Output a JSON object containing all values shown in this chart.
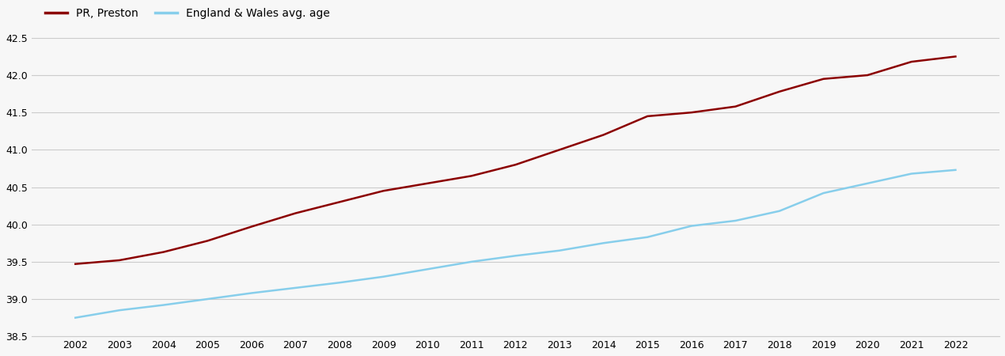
{
  "years": [
    2002,
    2003,
    2004,
    2005,
    2006,
    2007,
    2008,
    2009,
    2010,
    2011,
    2012,
    2013,
    2014,
    2015,
    2016,
    2017,
    2018,
    2019,
    2020,
    2021,
    2022
  ],
  "preston": [
    39.47,
    39.52,
    39.63,
    39.78,
    39.97,
    40.15,
    40.3,
    40.45,
    40.55,
    40.65,
    40.8,
    41.0,
    41.2,
    41.45,
    41.5,
    41.58,
    41.78,
    41.95,
    42.0,
    42.18,
    42.25
  ],
  "england_wales": [
    38.75,
    38.85,
    38.92,
    39.0,
    39.08,
    39.15,
    39.22,
    39.3,
    39.4,
    39.5,
    39.58,
    39.65,
    39.75,
    39.83,
    39.98,
    40.05,
    40.18,
    40.42,
    40.55,
    40.68,
    40.73
  ],
  "preston_color": "#8B0000",
  "ew_color": "#87CEEB",
  "preston_label": "PR, Preston",
  "ew_label": "England & Wales avg. age",
  "ylim": [
    38.5,
    42.75
  ],
  "yticks": [
    38.5,
    39.0,
    39.5,
    40.0,
    40.5,
    41.0,
    41.5,
    42.0,
    42.5
  ],
  "background_color": "#f7f7f7",
  "grid_color": "#cccccc",
  "line_width": 1.8
}
